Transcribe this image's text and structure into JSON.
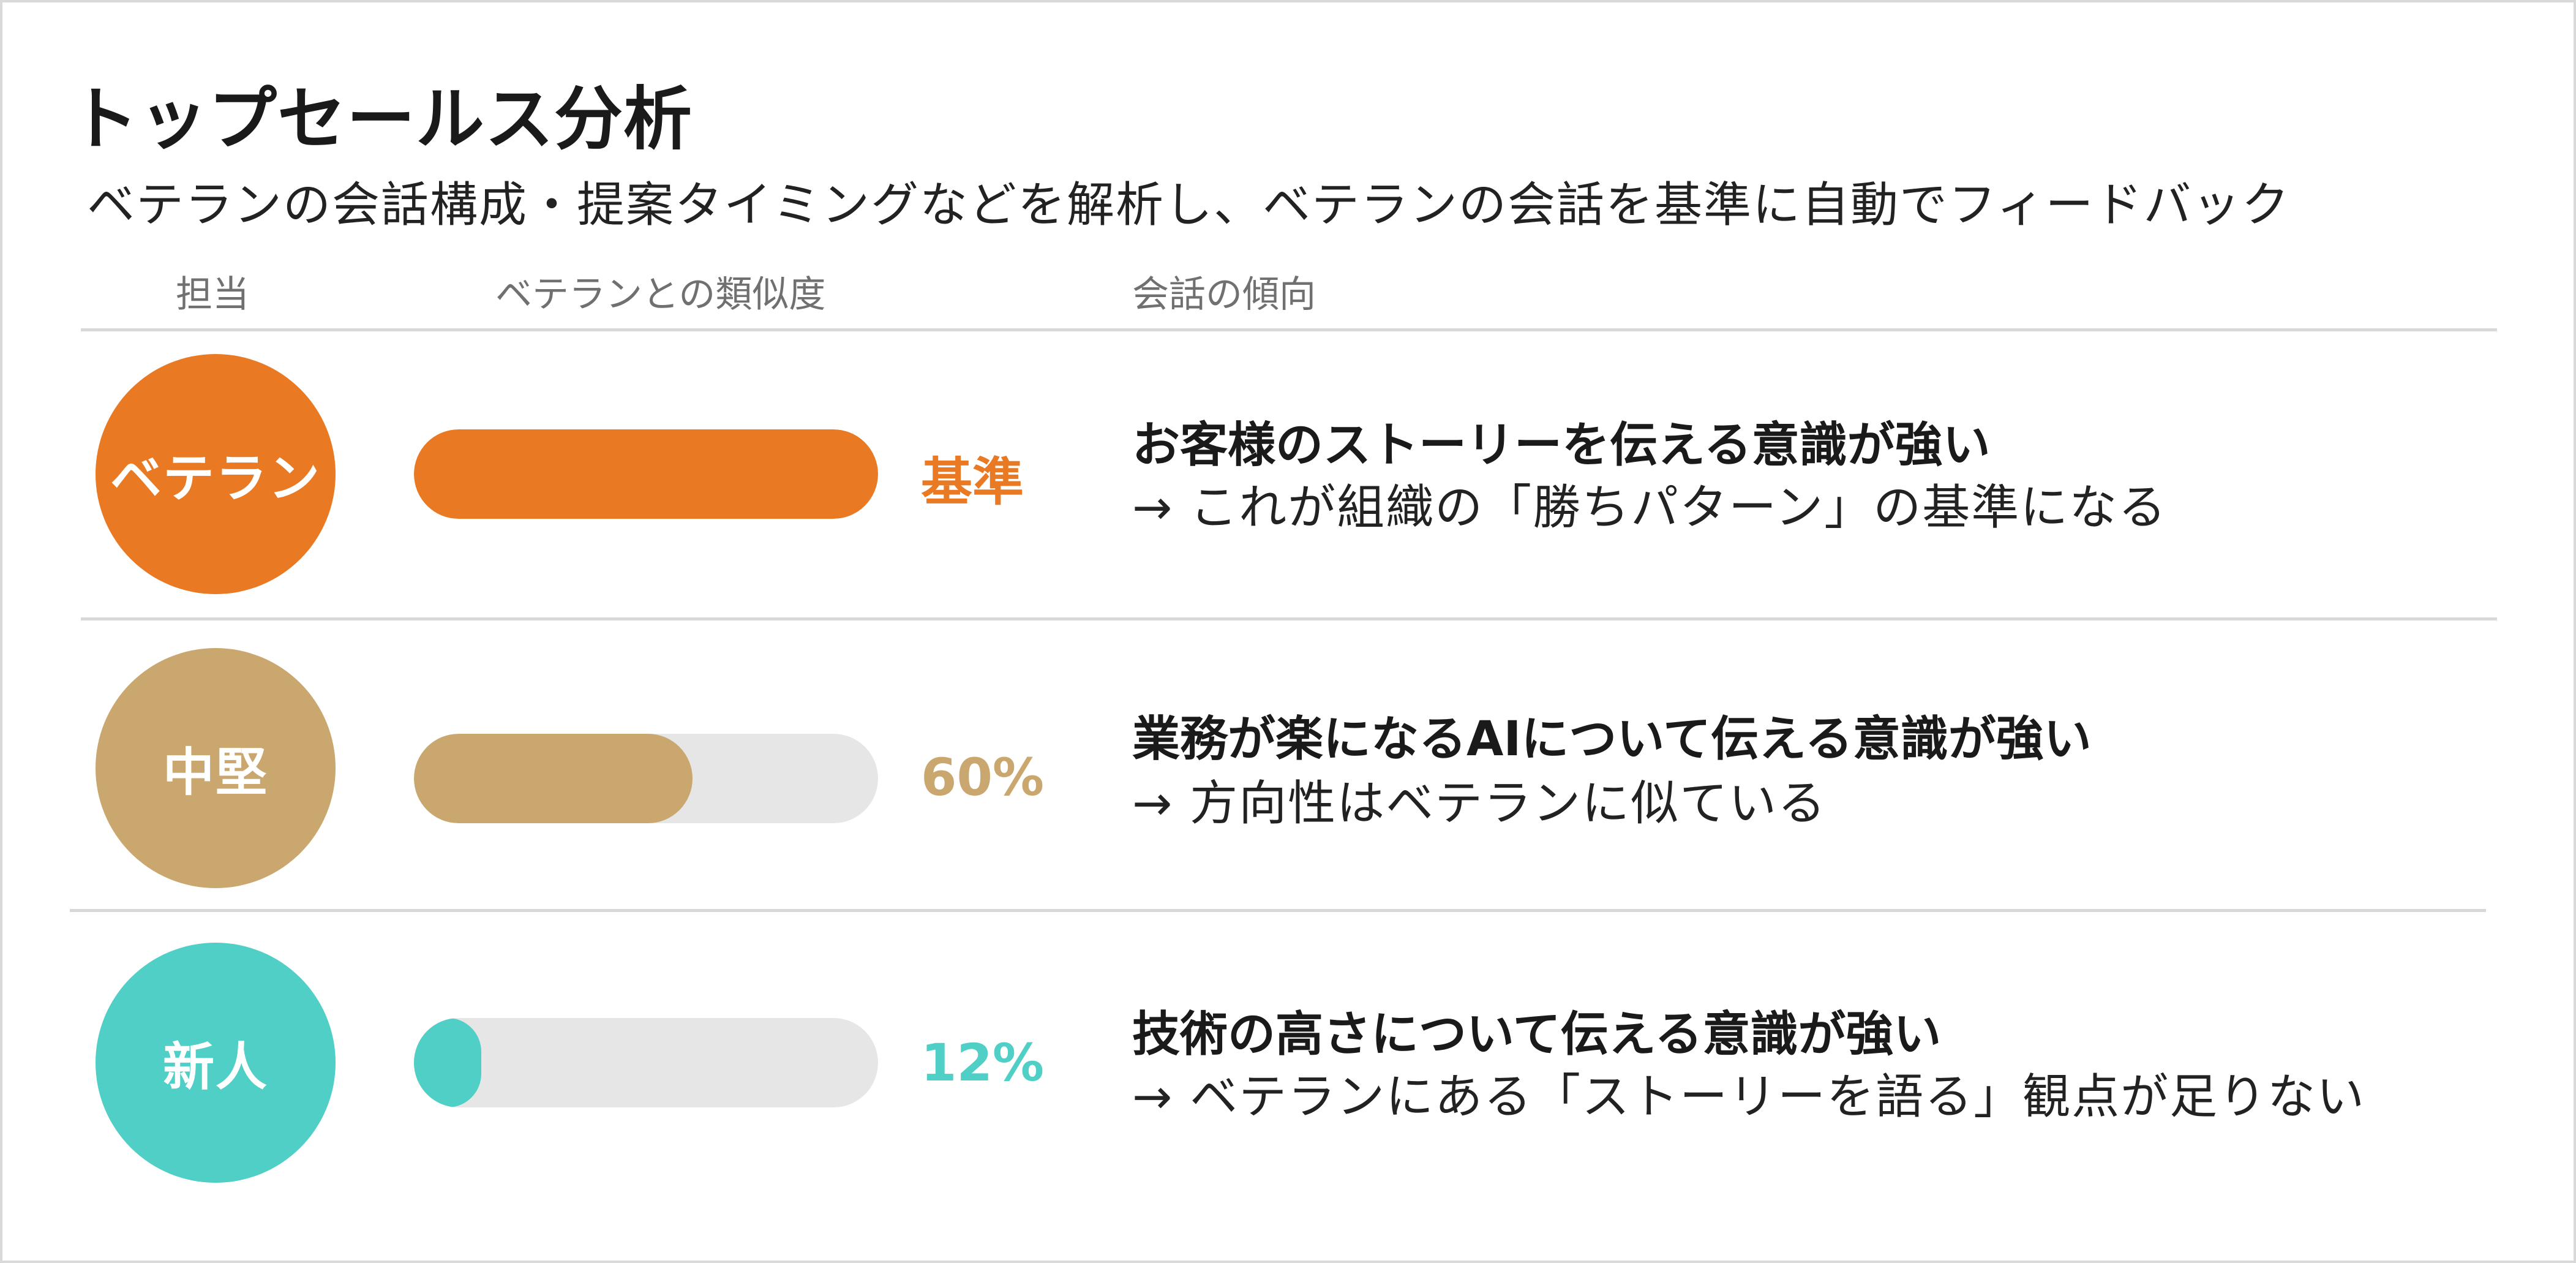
{
  "title": "トップセールス分析",
  "subtitle": "ベテランの会話構成・提案タイミングなどを解析し、ベテランの会話を基準に自動でフィードバック",
  "headers": {
    "person": "担当",
    "similarity": "ベテランとの類似度",
    "trend": "会話の傾向"
  },
  "rows": [
    {
      "person": "ベテラン",
      "color": "#E97A23",
      "similarity": 1.0,
      "value_label": "基準",
      "trend_main": "お客様のストーリーを伝える意識が強い",
      "trend_sub": "→ これが組織の「勝ちパターン」の基準になる"
    },
    {
      "person": "中堅",
      "color": "#C9A76E",
      "similarity": 0.6,
      "value_label": "60%",
      "trend_main": "業務が楽になるAIについて伝える意識が強い",
      "trend_sub": "→ 方向性はベテランに似ている"
    },
    {
      "person": "新人",
      "color": "#4FCFC6",
      "similarity": 0.12,
      "value_label": "12%",
      "trend_main": "技術の高さについて伝える意識が強い",
      "trend_sub": "→ ベテランにある「ストーリーを語る」観点が足りない"
    }
  ]
}
